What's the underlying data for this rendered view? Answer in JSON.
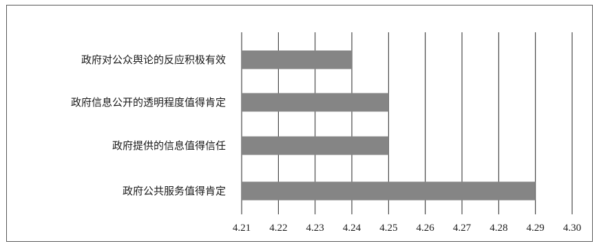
{
  "chart_data": {
    "type": "bar",
    "orientation": "horizontal",
    "categories": [
      "政府对公众舆论的反应积极有效",
      "政府信息公开的透明程度值得肯定",
      "政府提供的信息值得信任",
      "政府公共服务值得肯定"
    ],
    "values": [
      4.24,
      4.25,
      4.25,
      4.29
    ],
    "xlim": [
      4.21,
      4.3
    ],
    "xticks": [
      "4.21",
      "4.22",
      "4.23",
      "4.24",
      "4.25",
      "4.26",
      "4.27",
      "4.28",
      "4.29",
      "4.30"
    ],
    "grid": "vertical",
    "bar_color": "#858585",
    "title": "",
    "xlabel": "",
    "ylabel": ""
  }
}
